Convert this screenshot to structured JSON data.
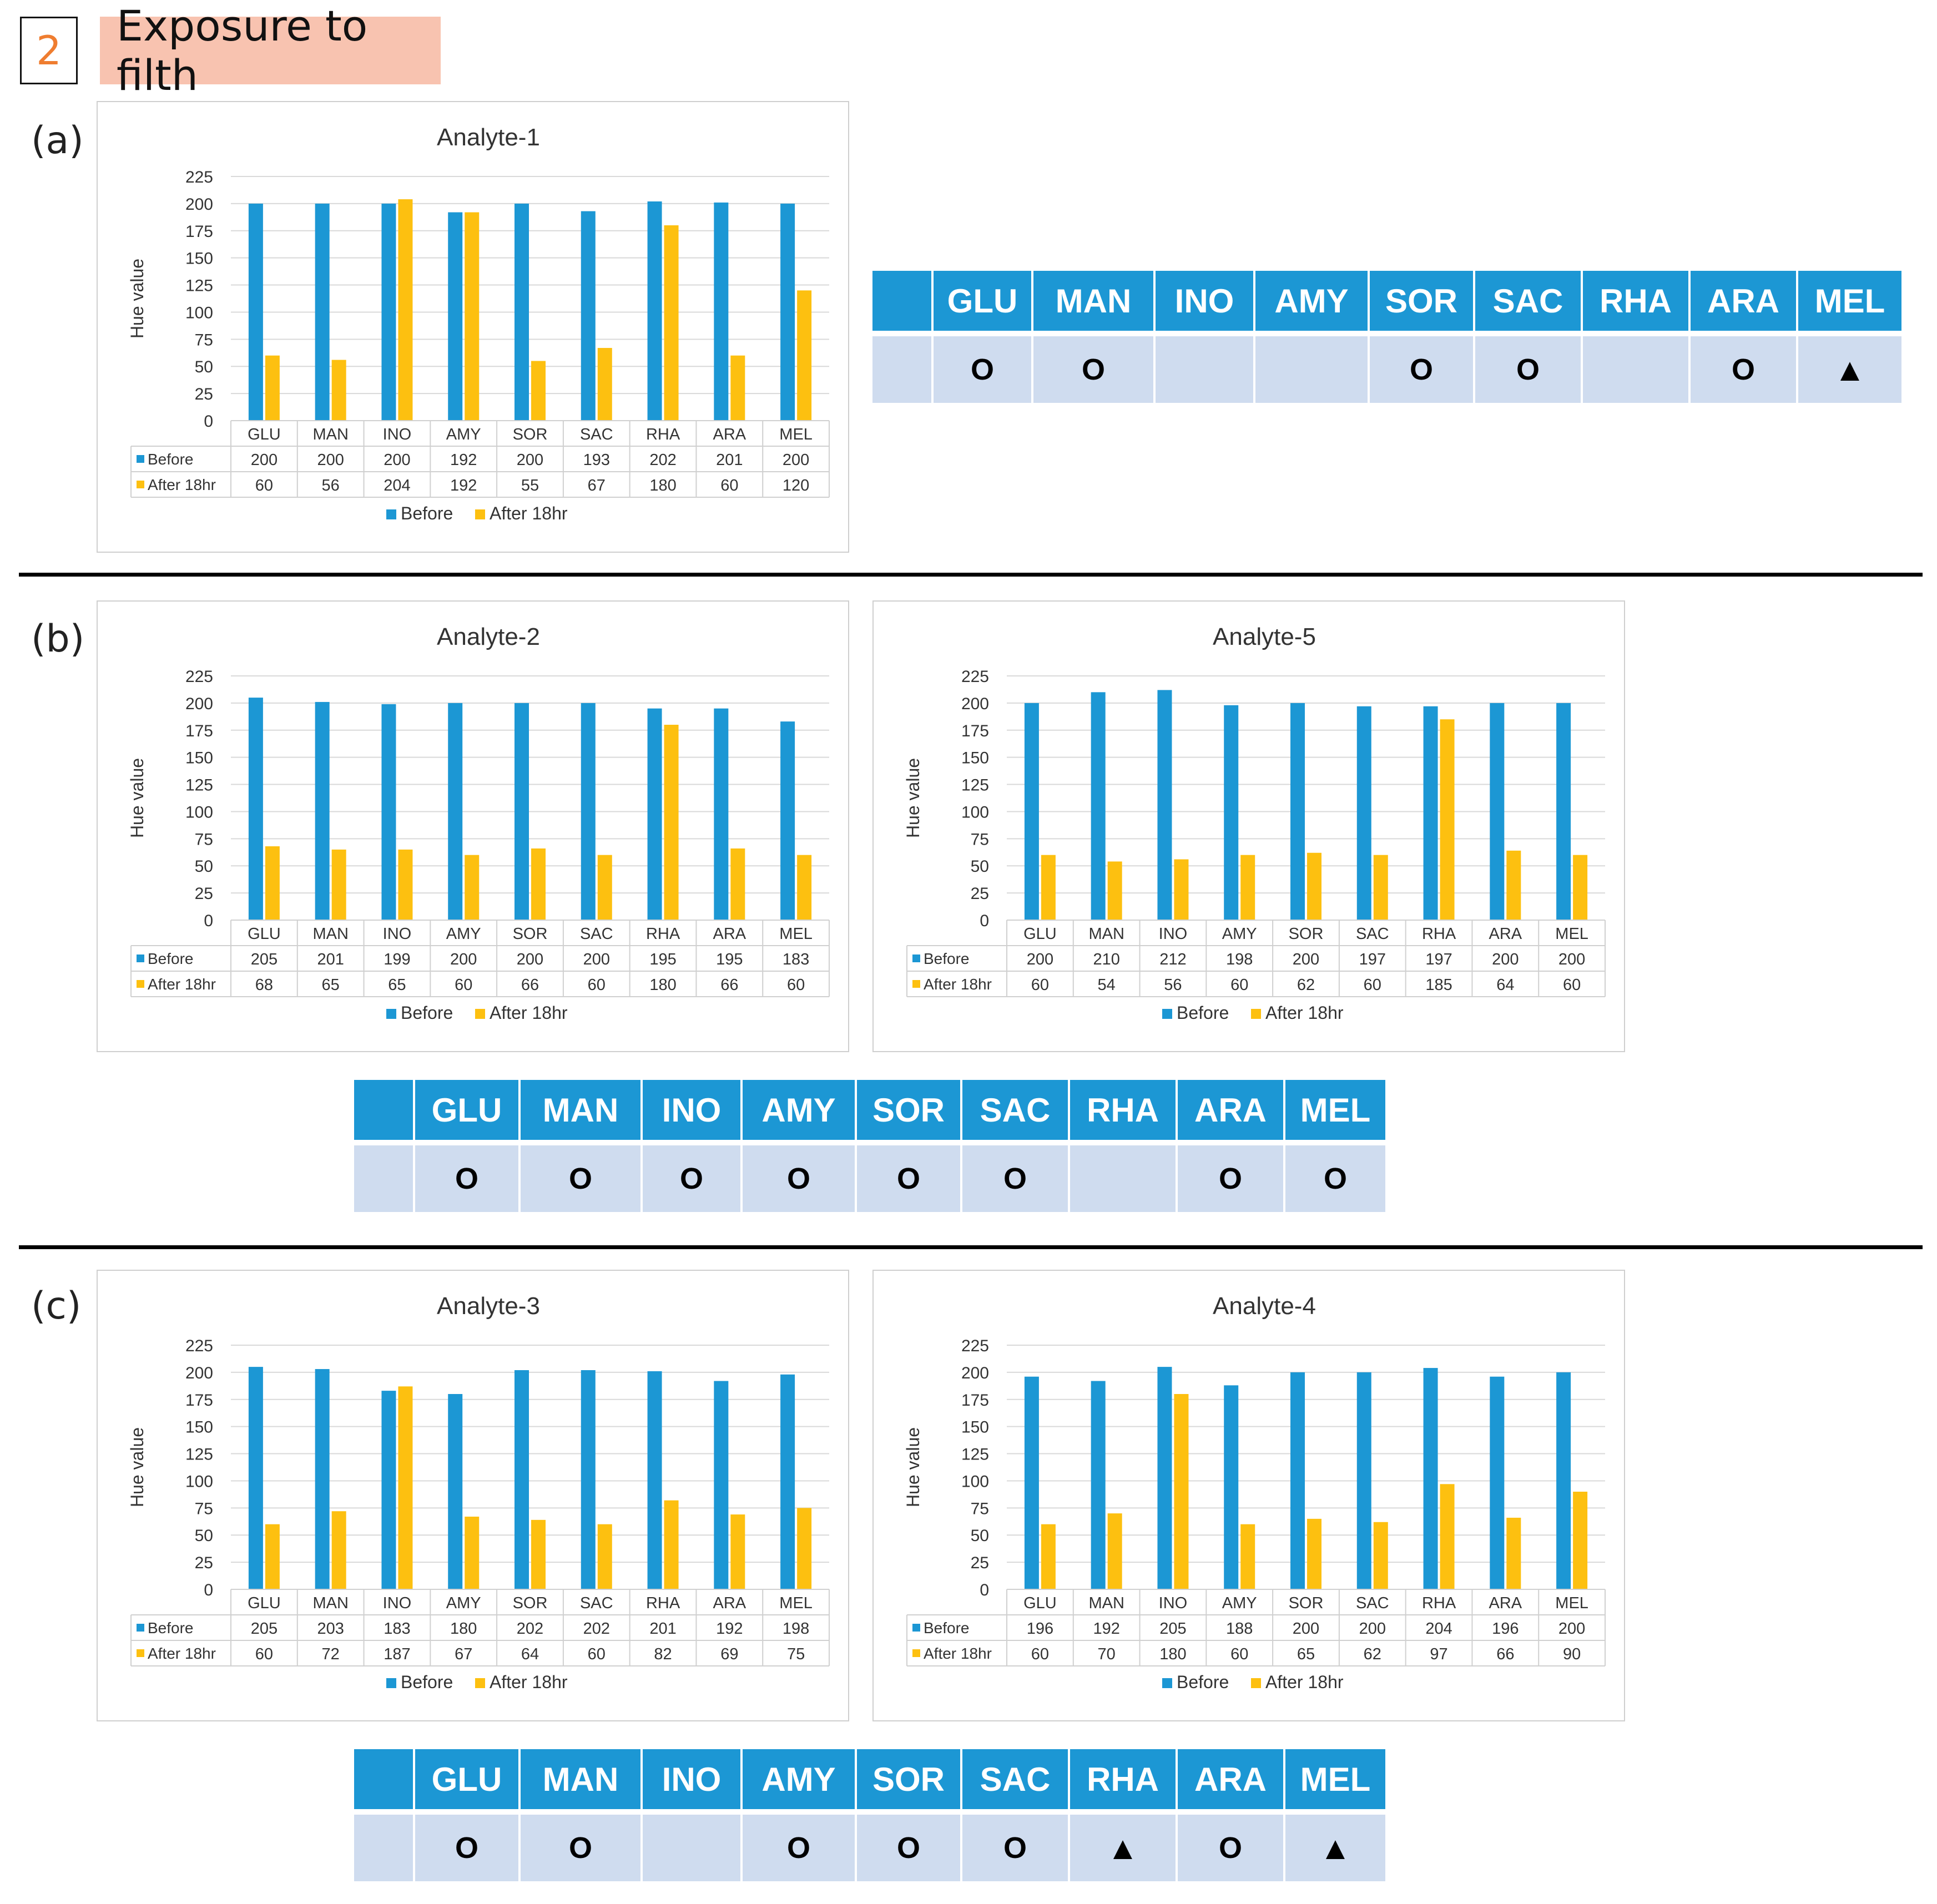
{
  "header": {
    "number": "2",
    "title": "Exposure to filth"
  },
  "panels": [
    {
      "label": "(a)"
    },
    {
      "label": "(b)"
    },
    {
      "label": "(c)"
    }
  ],
  "colors": {
    "before": "#1c97d4",
    "after": "#fdc010",
    "table_header": "#1c97d4",
    "table_body": "#cfdcef"
  },
  "chart_data": [
    {
      "type": "bar",
      "title": "Analyte-1",
      "ylabel": "Hue value",
      "xlabel": "",
      "ylim": [
        0,
        225
      ],
      "yticks": [
        0,
        25,
        50,
        75,
        100,
        125,
        150,
        175,
        200,
        225
      ],
      "categories": [
        "GLU",
        "MAN",
        "INO",
        "AMY",
        "SOR",
        "SAC",
        "RHA",
        "ARA",
        "MEL"
      ],
      "series": [
        {
          "name": "Before",
          "values": [
            200,
            200,
            200,
            192,
            200,
            193,
            202,
            201,
            200
          ]
        },
        {
          "name": "After 18hr",
          "values": [
            60,
            56,
            204,
            192,
            55,
            67,
            180,
            60,
            120
          ]
        }
      ],
      "legend": "bottom",
      "grid": true
    },
    {
      "type": "bar",
      "title": "Analyte-2",
      "ylabel": "Hue value",
      "xlabel": "",
      "ylim": [
        0,
        225
      ],
      "yticks": [
        0,
        25,
        50,
        75,
        100,
        125,
        150,
        175,
        200,
        225
      ],
      "categories": [
        "GLU",
        "MAN",
        "INO",
        "AMY",
        "SOR",
        "SAC",
        "RHA",
        "ARA",
        "MEL"
      ],
      "series": [
        {
          "name": "Before",
          "values": [
            205,
            201,
            199,
            200,
            200,
            200,
            195,
            195,
            183
          ]
        },
        {
          "name": "After 18hr",
          "values": [
            68,
            65,
            65,
            60,
            66,
            60,
            180,
            66,
            60
          ]
        }
      ],
      "legend": "bottom",
      "grid": true
    },
    {
      "type": "bar",
      "title": "Analyte-5",
      "ylabel": "Hue value",
      "xlabel": "",
      "ylim": [
        0,
        225
      ],
      "yticks": [
        0,
        25,
        50,
        75,
        100,
        125,
        150,
        175,
        200,
        225
      ],
      "categories": [
        "GLU",
        "MAN",
        "INO",
        "AMY",
        "SOR",
        "SAC",
        "RHA",
        "ARA",
        "MEL"
      ],
      "series": [
        {
          "name": "Before",
          "values": [
            200,
            210,
            212,
            198,
            200,
            197,
            197,
            200,
            200
          ]
        },
        {
          "name": "After 18hr",
          "values": [
            60,
            54,
            56,
            60,
            62,
            60,
            185,
            64,
            60
          ]
        }
      ],
      "legend": "bottom",
      "grid": true
    },
    {
      "type": "bar",
      "title": "Analyte-3",
      "ylabel": "Hue value",
      "xlabel": "",
      "ylim": [
        0,
        225
      ],
      "yticks": [
        0,
        25,
        50,
        75,
        100,
        125,
        150,
        175,
        200,
        225
      ],
      "categories": [
        "GLU",
        "MAN",
        "INO",
        "AMY",
        "SOR",
        "SAC",
        "RHA",
        "ARA",
        "MEL"
      ],
      "series": [
        {
          "name": "Before",
          "values": [
            205,
            203,
            183,
            180,
            202,
            202,
            201,
            192,
            198
          ]
        },
        {
          "name": "After 18hr",
          "values": [
            60,
            72,
            187,
            67,
            64,
            60,
            82,
            69,
            75
          ]
        }
      ],
      "legend": "bottom",
      "grid": true
    },
    {
      "type": "bar",
      "title": "Analyte-4",
      "ylabel": "Hue value",
      "xlabel": "",
      "ylim": [
        0,
        225
      ],
      "yticks": [
        0,
        25,
        50,
        75,
        100,
        125,
        150,
        175,
        200,
        225
      ],
      "categories": [
        "GLU",
        "MAN",
        "INO",
        "AMY",
        "SOR",
        "SAC",
        "RHA",
        "ARA",
        "MEL"
      ],
      "series": [
        {
          "name": "Before",
          "values": [
            196,
            192,
            205,
            188,
            200,
            200,
            204,
            196,
            200
          ]
        },
        {
          "name": "After 18hr",
          "values": [
            60,
            70,
            180,
            60,
            65,
            62,
            97,
            66,
            90
          ]
        }
      ],
      "legend": "bottom",
      "grid": true
    }
  ],
  "tables": [
    {
      "headers": [
        "GLU",
        "MAN",
        "INO",
        "AMY",
        "SOR",
        "SAC",
        "RHA",
        "ARA",
        "MEL"
      ],
      "values": [
        "O",
        "O",
        "",
        "",
        "O",
        "O",
        "",
        "O",
        "▲"
      ]
    },
    {
      "headers": [
        "GLU",
        "MAN",
        "INO",
        "AMY",
        "SOR",
        "SAC",
        "RHA",
        "ARA",
        "MEL"
      ],
      "values": [
        "O",
        "O",
        "O",
        "O",
        "O",
        "O",
        "",
        "O",
        "O"
      ]
    },
    {
      "headers": [
        "GLU",
        "MAN",
        "INO",
        "AMY",
        "SOR",
        "SAC",
        "RHA",
        "ARA",
        "MEL"
      ],
      "values": [
        "O",
        "O",
        "",
        "O",
        "O",
        "O",
        "▲",
        "O",
        "▲"
      ]
    }
  ]
}
